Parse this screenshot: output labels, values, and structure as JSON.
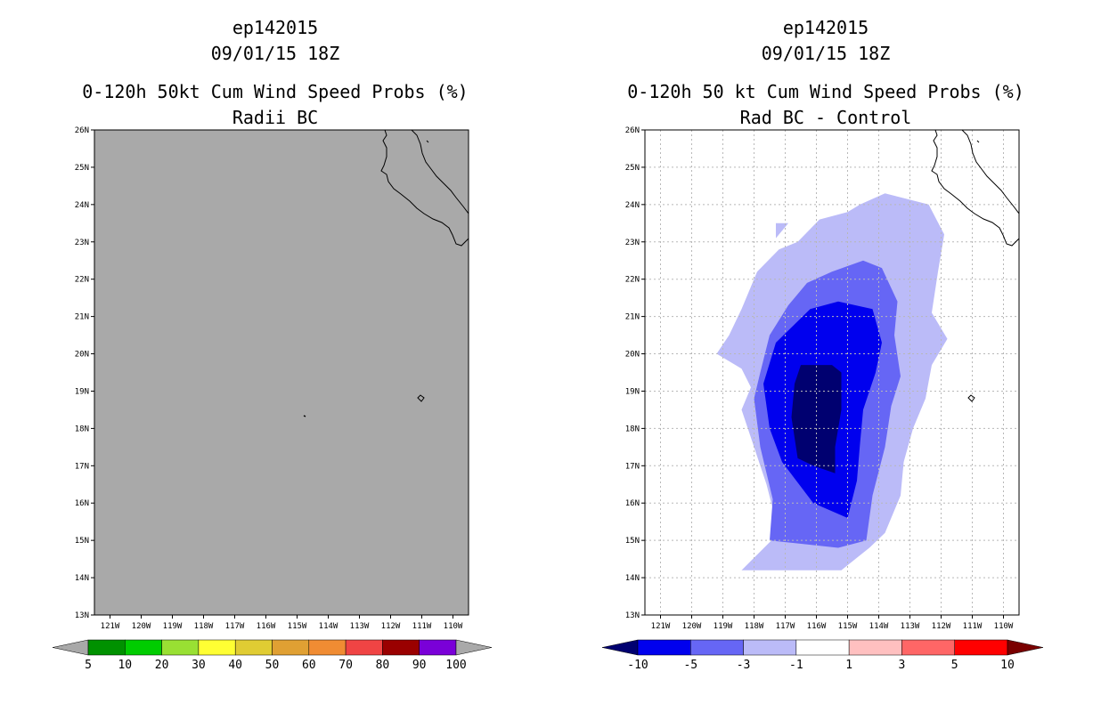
{
  "colors": {
    "land_ocean_gray": "#a9a9a9",
    "grid": "#b8b8b8",
    "prob_scale": [
      "#a9a9a9",
      "#009100",
      "#00cc00",
      "#99e033",
      "#ffff33",
      "#e0cc33",
      "#e0a033",
      "#f08c33",
      "#f04444",
      "#9a0000",
      "#7a00d8",
      "#a9a9a9"
    ],
    "diff_scale": [
      "#000070",
      "#0000ee",
      "#6666f5",
      "#bbbbf8",
      "#ffffff",
      "#ffc0c0",
      "#ff6666",
      "#ff0000",
      "#7a0000"
    ]
  },
  "left": {
    "title": [
      "ep142015",
      "09/01/15 18Z",
      "0-120h 50kt Cum Wind Speed Probs (%)",
      "Radii BC"
    ],
    "y_ticks": [
      "26N",
      "25N",
      "24N",
      "23N",
      "22N",
      "21N",
      "20N",
      "19N",
      "18N",
      "17N",
      "16N",
      "15N",
      "14N",
      "13N"
    ],
    "x_ticks": [
      "121W",
      "120W",
      "119W",
      "118W",
      "117W",
      "116W",
      "115W",
      "114W",
      "113W",
      "112W",
      "111W",
      "110W"
    ],
    "colorbar_labels": [
      "5",
      "10",
      "20",
      "30",
      "40",
      "50",
      "60",
      "70",
      "80",
      "90",
      "100"
    ]
  },
  "right": {
    "title": [
      "ep142015",
      "09/01/15 18Z",
      "0-120h 50 kt Cum Wind Speed Probs (%)",
      "Rad BC - Control"
    ],
    "y_ticks": [
      "26N",
      "25N",
      "24N",
      "23N",
      "22N",
      "21N",
      "20N",
      "19N",
      "18N",
      "17N",
      "16N",
      "15N",
      "14N",
      "13N"
    ],
    "x_ticks": [
      "121W",
      "120W",
      "119W",
      "118W",
      "117W",
      "116W",
      "115W",
      "114W",
      "113W",
      "112W",
      "111W",
      "110W"
    ],
    "colorbar_labels": [
      "-10",
      "-5",
      "-3",
      "-1",
      "1",
      "3",
      "5",
      "10"
    ]
  },
  "chart_data": [
    {
      "type": "heatmap",
      "title": "0-120h 50kt Cum Wind Speed Probs (%) - Radii BC",
      "storm": "ep142015",
      "time": "09/01/15 18Z",
      "xlim": [
        -121.5,
        -109.5
      ],
      "ylim": [
        13,
        26
      ],
      "levels": [
        5,
        10,
        20,
        30,
        40,
        50,
        60,
        70,
        80,
        90,
        100
      ],
      "field": "all values below 5% (uniform gray)"
    },
    {
      "type": "heatmap",
      "title": "0-120h 50 kt Cum Wind Speed Probs (%) - Rad BC - Control",
      "storm": "ep142015",
      "time": "09/01/15 18Z",
      "xlim": [
        -121.5,
        -109.5
      ],
      "ylim": [
        13,
        26
      ],
      "levels": [
        -10,
        -5,
        -3,
        -1,
        1,
        3,
        5,
        10
      ],
      "contours": [
        {
          "level": "<=-1",
          "points": [
            [
              -118.4,
              14.2
            ],
            [
              -117.2,
              15.2
            ],
            [
              -117.6,
              16.5
            ],
            [
              -118.0,
              17.5
            ],
            [
              -118.4,
              18.5
            ],
            [
              -118.1,
              19.1
            ],
            [
              -118.4,
              19.6
            ],
            [
              -119.2,
              20.0
            ],
            [
              -118.8,
              20.5
            ],
            [
              -118.4,
              21.2
            ],
            [
              -117.9,
              22.2
            ],
            [
              -117.2,
              22.8
            ],
            [
              -116.6,
              23.0
            ],
            [
              -115.9,
              23.6
            ],
            [
              -115.0,
              23.8
            ],
            [
              -114.6,
              24.0
            ],
            [
              -113.8,
              24.3
            ],
            [
              -112.4,
              24.0
            ],
            [
              -111.9,
              23.2
            ],
            [
              -112.1,
              22.2
            ],
            [
              -112.3,
              21.1
            ],
            [
              -111.8,
              20.4
            ],
            [
              -112.3,
              19.7
            ],
            [
              -112.5,
              18.8
            ],
            [
              -112.9,
              18.0
            ],
            [
              -113.2,
              17.1
            ],
            [
              -113.3,
              16.2
            ],
            [
              -113.8,
              15.2
            ],
            [
              -114.3,
              14.8
            ],
            [
              -115.2,
              14.2
            ]
          ]
        },
        {
          "level": "<=-3",
          "points": [
            [
              -117.5,
              15.0
            ],
            [
              -117.4,
              16.1
            ],
            [
              -117.8,
              17.5
            ],
            [
              -118.0,
              18.8
            ],
            [
              -117.8,
              19.5
            ],
            [
              -117.5,
              20.5
            ],
            [
              -116.9,
              21.3
            ],
            [
              -116.3,
              21.9
            ],
            [
              -115.5,
              22.2
            ],
            [
              -114.5,
              22.5
            ],
            [
              -113.9,
              22.3
            ],
            [
              -113.4,
              21.4
            ],
            [
              -113.5,
              20.5
            ],
            [
              -113.3,
              19.4
            ],
            [
              -113.6,
              18.6
            ],
            [
              -113.8,
              17.5
            ],
            [
              -114.2,
              16.2
            ],
            [
              -114.4,
              15.0
            ],
            [
              -115.3,
              14.8
            ]
          ]
        },
        {
          "level": "<=-5",
          "points": [
            [
              -116.1,
              16.0
            ],
            [
              -117.1,
              17.1
            ],
            [
              -117.5,
              18.0
            ],
            [
              -117.7,
              19.2
            ],
            [
              -117.3,
              20.3
            ],
            [
              -116.2,
              21.2
            ],
            [
              -115.3,
              21.4
            ],
            [
              -114.2,
              21.2
            ],
            [
              -113.9,
              20.3
            ],
            [
              -114.1,
              19.5
            ],
            [
              -114.5,
              18.5
            ],
            [
              -114.6,
              17.6
            ],
            [
              -114.7,
              16.6
            ],
            [
              -115.0,
              15.6
            ]
          ]
        },
        {
          "level": "<=-10",
          "points": [
            [
              -116.6,
              17.2
            ],
            [
              -116.8,
              18.3
            ],
            [
              -116.7,
              19.2
            ],
            [
              -116.5,
              19.7
            ],
            [
              -115.5,
              19.7
            ],
            [
              -115.2,
              19.5
            ],
            [
              -115.2,
              18.5
            ],
            [
              -115.4,
              17.5
            ],
            [
              -115.4,
              16.8
            ],
            [
              -116.1,
              17.0
            ]
          ]
        }
      ]
    }
  ]
}
